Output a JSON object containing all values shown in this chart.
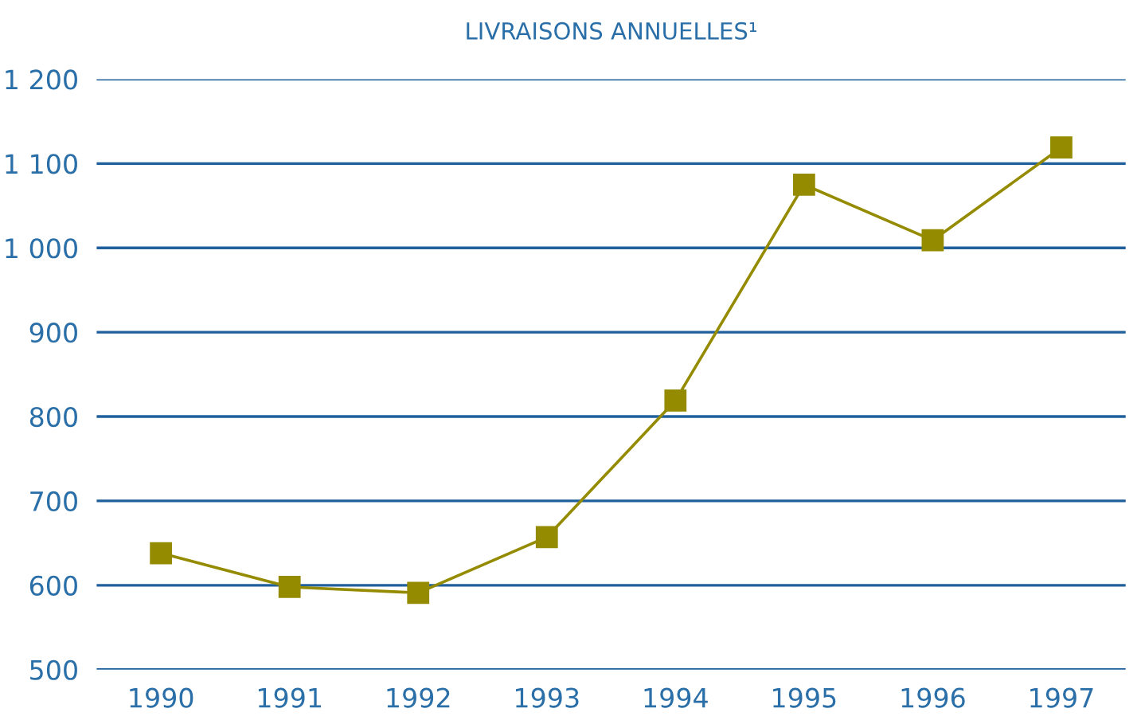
{
  "chart_data": {
    "type": "line",
    "title": "LIVRAISONS ANNUELLES¹",
    "categories": [
      "1990",
      "1991",
      "1992",
      "1993",
      "1994",
      "1995",
      "1996",
      "1997"
    ],
    "series": [
      {
        "color": "#948b00",
        "values": [
          638,
          598,
          591,
          657,
          819,
          1075,
          1009,
          1119
        ]
      }
    ],
    "ylim": [
      500,
      1200
    ],
    "yticks": [
      500,
      600,
      700,
      800,
      900,
      {
        "value": 1000,
        "label": "1 000"
      },
      {
        "value": 1100,
        "label": "1 100"
      },
      {
        "value": 1200,
        "label": "1 200"
      }
    ],
    "grid": "y",
    "marker": "square",
    "line_style": "solid"
  }
}
